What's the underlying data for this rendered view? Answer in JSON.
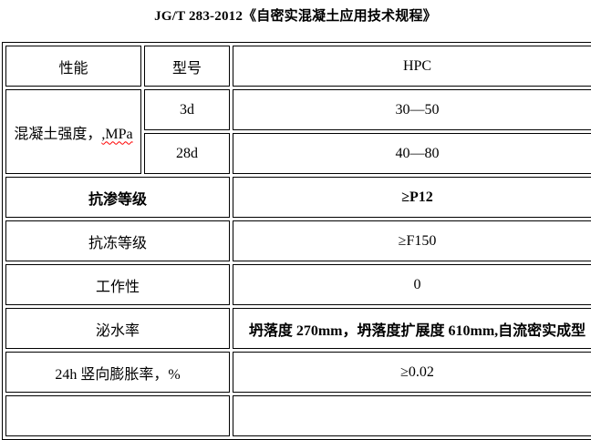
{
  "title": "JG/T 283-2012《自密实混凝土应用技术规程》",
  "table": {
    "header": {
      "performance": "性能",
      "model": "型号",
      "value_col": "HPC"
    },
    "strength": {
      "label": "混凝土强度，",
      "label_suffix": ",MPa",
      "sub_rows": [
        {
          "age": "3d",
          "range": "30—50"
        },
        {
          "age": "28d",
          "range": "40—80"
        }
      ]
    },
    "rows": [
      {
        "label": "抗渗等级",
        "value": "≥P12"
      },
      {
        "label": "抗冻等级",
        "value": "≥F150"
      },
      {
        "label": "工作性",
        "value": "0"
      },
      {
        "label": "泌水率",
        "value": "坍落度 270mm，坍落度扩展度 610mm,自流密实成型"
      },
      {
        "label": "24h 竖向膨胀率，%",
        "value": "≥0.02"
      }
    ]
  },
  "colors": {
    "text": "#000000",
    "border": "#000000",
    "background": "#ffffff",
    "spellcheck_underline": "#ff0000"
  }
}
